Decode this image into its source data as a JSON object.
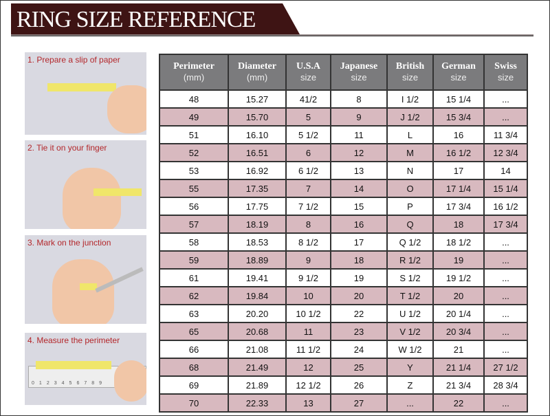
{
  "title": "RING SIZE REFERENCE",
  "colors": {
    "banner": "#3e1414",
    "header": "#7b7b7d",
    "row_alt": "#d8b9bf",
    "step_text": "#b3262a"
  },
  "steps": [
    {
      "label": "1. Prepare a slip of paper"
    },
    {
      "label": "2. Tie it on your finger"
    },
    {
      "label": "3. Mark on the junction"
    },
    {
      "label": "4. Measure the perimeter"
    }
  ],
  "ruler_ticks": [
    "0",
    "1",
    "2",
    "3",
    "4",
    "5",
    "6",
    "7",
    "8",
    "9"
  ],
  "table": {
    "headers": [
      {
        "main": "Perimeter",
        "sub": "(mm)"
      },
      {
        "main": "Diameter",
        "sub": "(mm)"
      },
      {
        "main": "U.S.A",
        "sub": "size"
      },
      {
        "main": "Japanese",
        "sub": "size"
      },
      {
        "main": "British",
        "sub": "size"
      },
      {
        "main": "German",
        "sub": "size"
      },
      {
        "main": "Swiss",
        "sub": "size"
      }
    ],
    "rows": [
      [
        "48",
        "15.27",
        "41/2",
        "8",
        "I 1/2",
        "15 1/4",
        "..."
      ],
      [
        "49",
        "15.70",
        "5",
        "9",
        "J 1/2",
        "15 3/4",
        "..."
      ],
      [
        "51",
        "16.10",
        "5 1/2",
        "11",
        "L",
        "16",
        "11 3/4"
      ],
      [
        "52",
        "16.51",
        "6",
        "12",
        "M",
        "16 1/2",
        "12 3/4"
      ],
      [
        "53",
        "16.92",
        "6 1/2",
        "13",
        "N",
        "17",
        "14"
      ],
      [
        "55",
        "17.35",
        "7",
        "14",
        "O",
        "17 1/4",
        "15 1/4"
      ],
      [
        "56",
        "17.75",
        "7 1/2",
        "15",
        "P",
        "17 3/4",
        "16 1/2"
      ],
      [
        "57",
        "18.19",
        "8",
        "16",
        "Q",
        "18",
        "17 3/4"
      ],
      [
        "58",
        "18.53",
        "8 1/2",
        "17",
        "Q  1/2",
        "18 1/2",
        "..."
      ],
      [
        "59",
        "18.89",
        "9",
        "18",
        "R 1/2",
        "19",
        "..."
      ],
      [
        "61",
        "19.41",
        "9 1/2",
        "19",
        "S 1/2",
        "19 1/2",
        "..."
      ],
      [
        "62",
        "19.84",
        "10",
        "20",
        "T 1/2",
        "20",
        "..."
      ],
      [
        "63",
        "20.20",
        "10 1/2",
        "22",
        "U 1/2",
        "20 1/4",
        "..."
      ],
      [
        "65",
        "20.68",
        "11",
        "23",
        "V 1/2",
        "20 3/4",
        "..."
      ],
      [
        "66",
        "21.08",
        "11 1/2",
        "24",
        "W 1/2",
        "21",
        "..."
      ],
      [
        "68",
        "21.49",
        "12",
        "25",
        "Y",
        "21 1/4",
        "27 1/2"
      ],
      [
        "69",
        "21.89",
        "12 1/2",
        "26",
        "Z",
        "21 3/4",
        "28 3/4"
      ],
      [
        "70",
        "22.33",
        "13",
        "27",
        "...",
        "22",
        "..."
      ]
    ]
  }
}
